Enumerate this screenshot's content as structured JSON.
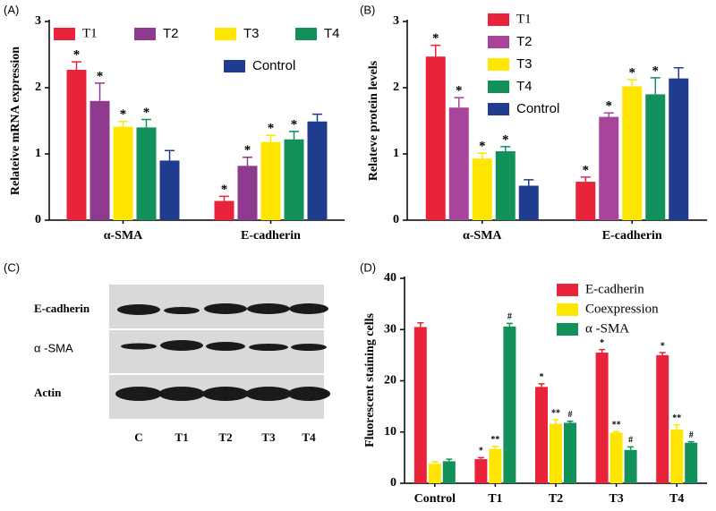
{
  "chart_data": [
    {
      "type": "bar",
      "panel_label": "(A)",
      "y_label": "Relateive mRNA expression",
      "categories": [
        "α-SMA",
        "E-cadherin"
      ],
      "series": [
        {
          "name": "T1",
          "color": "#e8233a",
          "values": [
            2.27,
            0.29
          ],
          "errors": [
            0.12,
            0.07
          ],
          "markers": [
            "*",
            "*"
          ]
        },
        {
          "name": "T2",
          "color": "#8e3a8e",
          "values": [
            1.8,
            0.82
          ],
          "errors": [
            0.27,
            0.13
          ],
          "markers": [
            "*",
            "*"
          ]
        },
        {
          "name": "T3",
          "color": "#ffe600",
          "values": [
            1.41,
            1.18
          ],
          "errors": [
            0.08,
            0.1
          ],
          "markers": [
            "*",
            "*"
          ]
        },
        {
          "name": "T4",
          "color": "#12915a",
          "values": [
            1.4,
            1.22
          ],
          "errors": [
            0.12,
            0.12
          ],
          "markers": [
            "*",
            "*"
          ]
        },
        {
          "name": "Control",
          "color": "#1f3c8f",
          "values": [
            0.9,
            1.49
          ],
          "errors": [
            0.15,
            0.11
          ]
        }
      ],
      "ylim": [
        0,
        3
      ],
      "yticks": [
        0,
        1,
        2,
        3
      ]
    },
    {
      "type": "bar",
      "panel_label": "(B)",
      "y_label": "Relateve  protein  levels",
      "categories": [
        "α-SMA",
        "E-cadherin"
      ],
      "series": [
        {
          "name": "T1",
          "color": "#e8233a",
          "values": [
            2.47,
            0.58
          ],
          "errors": [
            0.17,
            0.07
          ],
          "markers": [
            "*",
            "*"
          ]
        },
        {
          "name": "T2",
          "color": "#a8449a",
          "values": [
            1.7,
            1.56
          ],
          "errors": [
            0.15,
            0.06
          ],
          "markers": [
            "*",
            "*"
          ]
        },
        {
          "name": "T3",
          "color": "#ffe600",
          "values": [
            0.93,
            2.02
          ],
          "errors": [
            0.08,
            0.1
          ],
          "markers": [
            "*",
            "*"
          ]
        },
        {
          "name": "T4",
          "color": "#12915a",
          "values": [
            1.04,
            1.9
          ],
          "errors": [
            0.07,
            0.25
          ],
          "markers": [
            "*",
            "*"
          ]
        },
        {
          "name": "Control",
          "color": "#1f3c8f",
          "values": [
            0.52,
            2.14
          ],
          "errors": [
            0.09,
            0.16
          ]
        }
      ],
      "ylim": [
        0,
        3
      ],
      "yticks": [
        0,
        1,
        2,
        3
      ]
    },
    {
      "type": "bar",
      "panel_label": "(D)",
      "y_label": "Fluorescent staining cells",
      "categories": [
        "Control",
        "T1",
        "T2",
        "T3",
        "T4"
      ],
      "series": [
        {
          "name": "E-cadherin",
          "color": "#e8233a",
          "values": [
            30.5,
            4.7,
            18.8,
            25.5,
            25.0
          ],
          "errors": [
            0.8,
            0.3,
            0.6,
            0.6,
            0.5
          ],
          "markers": [
            null,
            "*",
            "*",
            "*",
            "*"
          ]
        },
        {
          "name": "Coexpression",
          "color": "#ffe600",
          "values": [
            3.8,
            6.7,
            11.6,
            9.9,
            10.5
          ],
          "errors": [
            0.4,
            0.5,
            0.8,
            0.2,
            0.9
          ],
          "markers": [
            null,
            "**",
            "**",
            "**",
            "**"
          ]
        },
        {
          "name": "α -SMA",
          "color": "#12915a",
          "values": [
            4.3,
            30.6,
            11.8,
            6.5,
            7.9
          ],
          "errors": [
            0.4,
            0.6,
            0.3,
            0.6,
            0.2
          ],
          "markers": [
            null,
            "#",
            "#",
            "#",
            "#"
          ]
        }
      ],
      "ylim": [
        0,
        40
      ],
      "yticks": [
        0,
        10,
        20,
        30,
        40
      ]
    }
  ],
  "blot": {
    "panel_label": "(C)",
    "rows": [
      "E-cadherin",
      "α -SMA",
      "Actin"
    ],
    "lanes": [
      "C",
      "T1",
      "T2",
      "T3",
      "T4"
    ]
  }
}
